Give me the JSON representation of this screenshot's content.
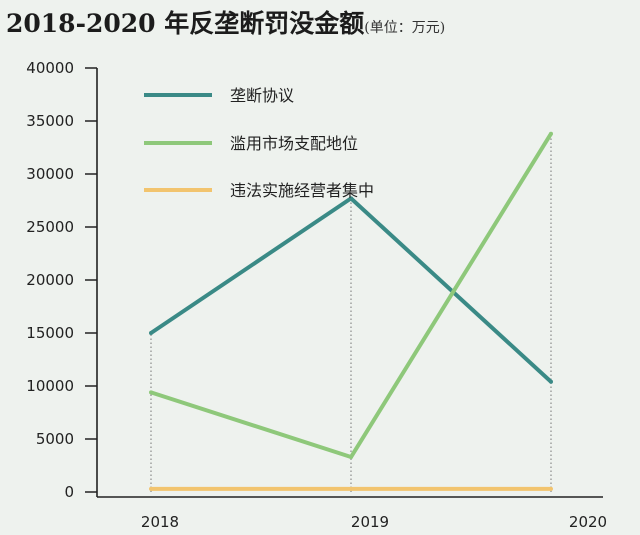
{
  "chart_data": {
    "type": "line",
    "title": "2018-2020 年反垄断罚没金额",
    "unit_note": "(单位：万元)",
    "categories": [
      "2018",
      "2019",
      "2020"
    ],
    "y_ticks": [
      "40000",
      "35000",
      "30000",
      "25000",
      "20000",
      "15000",
      "10000",
      "5000",
      "0"
    ],
    "ylim": [
      0,
      40000
    ],
    "series": [
      {
        "name": "垄断协议",
        "color": "#3a8a86",
        "values": [
          15000,
          27700,
          10400
        ]
      },
      {
        "name": "滥用市场支配地位",
        "color": "#8ec87a",
        "values": [
          9400,
          3300,
          33800
        ]
      },
      {
        "name": "违法实施经营者集中",
        "color": "#f2c46e",
        "values": [
          300,
          300,
          300
        ]
      }
    ],
    "legend_placement": "top-left",
    "grid": "vertical dotted lines at categories"
  }
}
